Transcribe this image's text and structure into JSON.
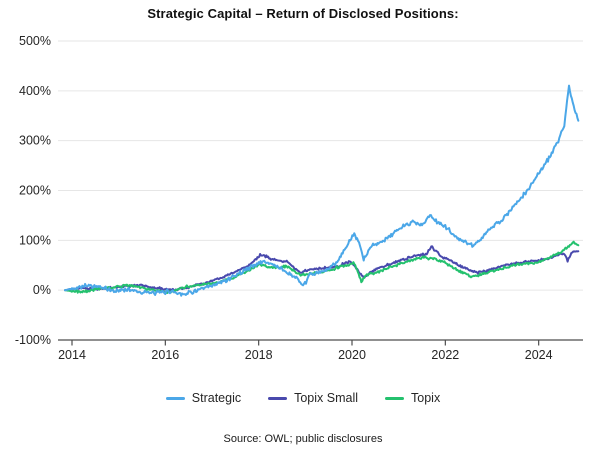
{
  "title": "Strategic Capital – Return of Disclosed Positions:",
  "source_note": "Source: OWL; public disclosures",
  "colors": {
    "strategic": "#4BA7E8",
    "topix_small": "#4949AD",
    "topix": "#24C16E",
    "gridline": "#E6E6E6",
    "axis": "#4D4D4D",
    "text": "#262626"
  },
  "chart_data": {
    "type": "line",
    "title": "Strategic Capital – Return of Disclosed Positions:",
    "xlabel": "",
    "ylabel": "",
    "unit": "%",
    "grid": "horizontal",
    "legend_position": "bottom",
    "x_range": [
      2013.7,
      2024.95
    ],
    "y_range": [
      -100,
      500
    ],
    "x_ticks": {
      "values": [
        2014,
        2016,
        2018,
        2020,
        2022,
        2024
      ],
      "labels": [
        "2014",
        "2016",
        "2018",
        "2020",
        "2022",
        "2024"
      ]
    },
    "y_ticks": {
      "values": [
        500,
        400,
        300,
        200,
        100,
        0,
        -100
      ],
      "labels": [
        "500%",
        "400%",
        "300%",
        "200%",
        "100%",
        "0%",
        "-100%"
      ]
    },
    "series": [
      {
        "name": "Strategic",
        "color": "#4BA7E8",
        "x": [
          2013.85,
          2014.0,
          2014.3,
          2014.6,
          2014.9,
          2015.2,
          2015.5,
          2015.8,
          2016.1,
          2016.4,
          2016.7,
          2017.0,
          2017.3,
          2017.6,
          2017.9,
          2018.1,
          2018.4,
          2018.7,
          2018.85,
          2018.95,
          2019.1,
          2019.3,
          2019.5,
          2019.7,
          2019.9,
          2020.05,
          2020.15,
          2020.25,
          2020.45,
          2020.7,
          2020.9,
          2021.1,
          2021.3,
          2021.5,
          2021.65,
          2021.8,
          2022.0,
          2022.2,
          2022.45,
          2022.6,
          2022.8,
          2023.0,
          2023.2,
          2023.4,
          2023.6,
          2023.8,
          2024.0,
          2024.2,
          2024.4,
          2024.55,
          2024.65,
          2024.75,
          2024.85
        ],
        "y": [
          0,
          3,
          10,
          6,
          -2,
          2,
          -4,
          -6,
          -2,
          -8,
          0,
          8,
          20,
          35,
          50,
          58,
          48,
          30,
          22,
          5,
          32,
          35,
          42,
          60,
          90,
          112,
          95,
          62,
          92,
          100,
          115,
          128,
          138,
          130,
          150,
          138,
          128,
          108,
          95,
          88,
          108,
          126,
          140,
          160,
          182,
          205,
          235,
          262,
          295,
          330,
          408,
          370,
          340
        ]
      },
      {
        "name": "Topix Small",
        "color": "#4949AD",
        "x": [
          2013.85,
          2014.2,
          2014.6,
          2015.0,
          2015.4,
          2015.8,
          2016.2,
          2016.6,
          2017.0,
          2017.4,
          2017.8,
          2018.05,
          2018.3,
          2018.6,
          2018.9,
          2019.1,
          2019.4,
          2019.7,
          2019.95,
          2020.15,
          2020.25,
          2020.5,
          2020.8,
          2021.1,
          2021.4,
          2021.6,
          2021.7,
          2021.9,
          2022.1,
          2022.4,
          2022.7,
          2022.9,
          2023.1,
          2023.4,
          2023.7,
          2024.0,
          2024.2,
          2024.4,
          2024.55,
          2024.62,
          2024.7,
          2024.85
        ],
        "y": [
          0,
          4,
          2,
          6,
          10,
          4,
          0,
          8,
          18,
          32,
          50,
          72,
          62,
          57,
          35,
          42,
          44,
          48,
          58,
          38,
          26,
          42,
          52,
          62,
          70,
          72,
          88,
          68,
          60,
          45,
          35,
          40,
          45,
          52,
          56,
          60,
          64,
          70,
          74,
          58,
          76,
          78
        ]
      },
      {
        "name": "Topix",
        "color": "#24C16E",
        "x": [
          2013.85,
          2014.2,
          2014.5,
          2014.9,
          2015.3,
          2015.7,
          2016.1,
          2016.5,
          2016.9,
          2017.3,
          2017.7,
          2018.0,
          2018.3,
          2018.6,
          2018.9,
          2019.2,
          2019.5,
          2019.8,
          2020.05,
          2020.2,
          2020.3,
          2020.6,
          2020.9,
          2021.2,
          2021.5,
          2021.8,
          2022.0,
          2022.3,
          2022.55,
          2022.8,
          2023.0,
          2023.3,
          2023.6,
          2023.9,
          2024.1,
          2024.3,
          2024.5,
          2024.65,
          2024.75,
          2024.85
        ],
        "y": [
          0,
          -4,
          2,
          6,
          10,
          0,
          -4,
          8,
          12,
          20,
          35,
          52,
          45,
          48,
          30,
          34,
          40,
          48,
          55,
          16,
          30,
          38,
          48,
          58,
          66,
          62,
          55,
          38,
          27,
          32,
          38,
          46,
          52,
          55,
          60,
          68,
          78,
          88,
          95,
          90
        ]
      }
    ]
  }
}
